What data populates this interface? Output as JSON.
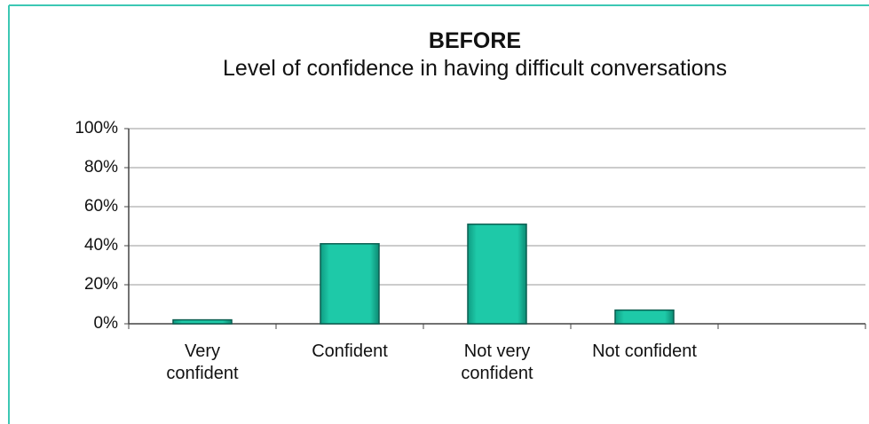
{
  "chart_data": {
    "type": "bar",
    "title": "BEFORE",
    "subtitle": "Level of confidence in having difficult conversations",
    "categories": [
      "Very confident",
      "Confident",
      "Not very confident",
      "Not confident",
      null
    ],
    "values": [
      2,
      41,
      51,
      7,
      null
    ],
    "color": "#1ec9a8",
    "ylim": [
      0,
      100
    ],
    "yticks": [
      {
        "value": 0,
        "label": "0%"
      },
      {
        "value": 20,
        "label": "20%"
      },
      {
        "value": 40,
        "label": "40%"
      },
      {
        "value": 60,
        "label": "60%"
      },
      {
        "value": 80,
        "label": "80%"
      },
      {
        "value": 100,
        "label": "100%"
      }
    ],
    "grid": true
  }
}
